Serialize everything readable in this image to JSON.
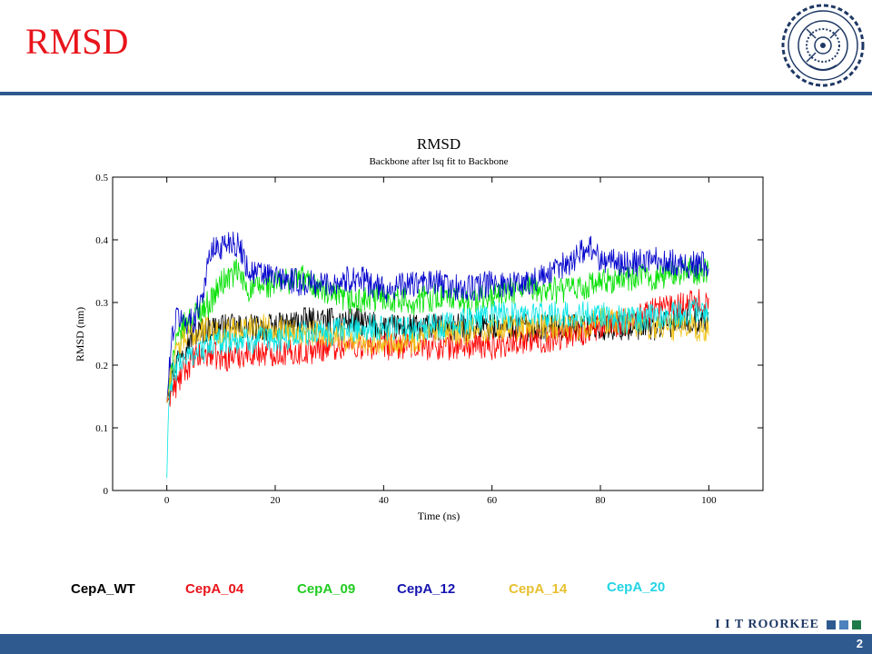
{
  "slide": {
    "title": "RMSD",
    "page_number": "2"
  },
  "logo": {
    "name": "IIT Roorkee emblem"
  },
  "brand": {
    "text": "I I T ROORKEE",
    "colors": [
      "#2f5a8f",
      "#4f81bd",
      "#1f7a4a"
    ]
  },
  "chart_data": {
    "type": "line",
    "title": "RMSD",
    "subtitle": "Backbone after lsq fit to Backbone",
    "xlabel": "Time (ns)",
    "ylabel": "RMSD (nm)",
    "xlim": [
      -10,
      110
    ],
    "ylim": [
      0,
      0.5
    ],
    "xticks": [
      0,
      20,
      40,
      60,
      80,
      100
    ],
    "yticks": [
      0,
      0.1,
      0.2,
      0.3,
      0.4,
      0.5
    ],
    "ytick_labels": [
      "0",
      "0.1",
      "0.2",
      "0.3",
      "0.4",
      "0.5"
    ],
    "series": [
      {
        "name": "CepA_WT",
        "color": "#000000",
        "x": [
          0,
          1,
          2,
          3,
          5,
          8,
          10,
          15,
          20,
          25,
          30,
          35,
          40,
          45,
          50,
          55,
          60,
          65,
          70,
          75,
          80,
          85,
          90,
          95,
          100
        ],
        "y": [
          0.14,
          0.19,
          0.21,
          0.23,
          0.25,
          0.26,
          0.26,
          0.26,
          0.26,
          0.27,
          0.27,
          0.27,
          0.26,
          0.26,
          0.26,
          0.26,
          0.26,
          0.26,
          0.26,
          0.26,
          0.26,
          0.26,
          0.26,
          0.27,
          0.27
        ]
      },
      {
        "name": "CepA_04",
        "color": "#ff0000",
        "x": [
          0,
          1,
          2,
          3,
          5,
          8,
          10,
          15,
          20,
          25,
          30,
          35,
          40,
          45,
          50,
          55,
          60,
          65,
          70,
          75,
          80,
          85,
          90,
          95,
          100
        ],
        "y": [
          0.14,
          0.16,
          0.17,
          0.19,
          0.21,
          0.22,
          0.21,
          0.22,
          0.22,
          0.22,
          0.23,
          0.23,
          0.23,
          0.23,
          0.23,
          0.23,
          0.23,
          0.24,
          0.24,
          0.25,
          0.26,
          0.27,
          0.29,
          0.3,
          0.3
        ]
      },
      {
        "name": "CepA_09",
        "color": "#00e000",
        "x": [
          0,
          1,
          2,
          3,
          5,
          8,
          10,
          13,
          15,
          20,
          25,
          30,
          35,
          40,
          45,
          50,
          55,
          60,
          65,
          70,
          75,
          80,
          85,
          90,
          95,
          100
        ],
        "y": [
          0.14,
          0.21,
          0.24,
          0.26,
          0.28,
          0.3,
          0.33,
          0.35,
          0.32,
          0.33,
          0.34,
          0.31,
          0.3,
          0.31,
          0.3,
          0.31,
          0.3,
          0.31,
          0.32,
          0.32,
          0.32,
          0.33,
          0.34,
          0.34,
          0.35,
          0.35
        ]
      },
      {
        "name": "CepA_12",
        "color": "#0000cc",
        "x": [
          0,
          1,
          2,
          3,
          5,
          7,
          8,
          10,
          12,
          14,
          15,
          20,
          25,
          30,
          35,
          40,
          45,
          50,
          55,
          60,
          65,
          70,
          75,
          78,
          80,
          85,
          90,
          95,
          100
        ],
        "y": [
          0.14,
          0.25,
          0.28,
          0.27,
          0.27,
          0.33,
          0.38,
          0.39,
          0.4,
          0.38,
          0.35,
          0.34,
          0.33,
          0.33,
          0.34,
          0.32,
          0.33,
          0.33,
          0.32,
          0.33,
          0.33,
          0.34,
          0.37,
          0.39,
          0.37,
          0.36,
          0.37,
          0.36,
          0.36
        ]
      },
      {
        "name": "CepA_14",
        "color": "#f2c418",
        "x": [
          0,
          1,
          2,
          3,
          5,
          8,
          10,
          15,
          20,
          25,
          30,
          35,
          40,
          45,
          50,
          55,
          60,
          65,
          70,
          75,
          80,
          85,
          90,
          95,
          100
        ],
        "y": [
          0.14,
          0.2,
          0.22,
          0.24,
          0.25,
          0.26,
          0.25,
          0.26,
          0.26,
          0.25,
          0.25,
          0.24,
          0.24,
          0.24,
          0.25,
          0.25,
          0.26,
          0.26,
          0.26,
          0.26,
          0.27,
          0.27,
          0.26,
          0.26,
          0.26
        ]
      },
      {
        "name": "CepA_20",
        "color": "#00e5e5",
        "x": [
          0,
          0.3,
          1,
          2,
          3,
          5,
          8,
          10,
          15,
          20,
          25,
          30,
          35,
          40,
          45,
          50,
          55,
          60,
          65,
          70,
          75,
          80,
          85,
          90,
          95,
          100
        ],
        "y": [
          0.02,
          0.13,
          0.18,
          0.2,
          0.21,
          0.22,
          0.23,
          0.24,
          0.24,
          0.24,
          0.25,
          0.25,
          0.26,
          0.26,
          0.26,
          0.26,
          0.27,
          0.28,
          0.28,
          0.28,
          0.28,
          0.28,
          0.27,
          0.28,
          0.28,
          0.29
        ]
      }
    ]
  },
  "legend": [
    {
      "label": "CepA_WT",
      "color": "#000000"
    },
    {
      "label": "CepA_04",
      "color": "#e8141b"
    },
    {
      "label": "CepA_09",
      "color": "#22cc22"
    },
    {
      "label": "CepA_12",
      "color": "#1515b0"
    },
    {
      "label": "CepA_14",
      "color": "#e8c030"
    },
    {
      "label": "CepA_20",
      "color": "#22d4e4"
    }
  ]
}
